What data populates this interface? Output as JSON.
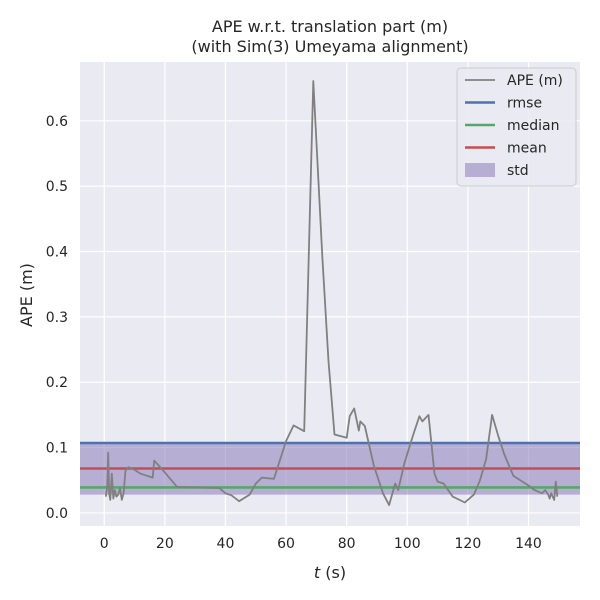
{
  "chart_data": {
    "type": "line",
    "title": "APE w.r.t. translation part (m)",
    "subtitle": "(with Sim(3) Umeyama alignment)",
    "xlabel_var": "t",
    "xlabel_unit": " (s)",
    "ylabel": "APE (m)",
    "xlim": [
      -8,
      157
    ],
    "ylim": [
      -0.02,
      0.69
    ],
    "xticks": [
      "0",
      "20",
      "40",
      "60",
      "80",
      "100",
      "120",
      "140"
    ],
    "yticks": [
      "0.0",
      "0.1",
      "0.2",
      "0.3",
      "0.4",
      "0.5",
      "0.6"
    ],
    "xtick_values": [
      0,
      20,
      40,
      60,
      80,
      100,
      120,
      140
    ],
    "ytick_values": [
      0.0,
      0.1,
      0.2,
      0.3,
      0.4,
      0.5,
      0.6
    ],
    "grid": true,
    "legend_position": "top-right",
    "series": [
      {
        "name": "APE (m)",
        "color": "#808080",
        "x": [
          0.5,
          1.0,
          1.3,
          1.6,
          2.0,
          2.5,
          3.0,
          3.5,
          4.0,
          4.6,
          5.2,
          5.8,
          6.4,
          7.0,
          8.0,
          10.0,
          12.0,
          14.0,
          16.0,
          16.5,
          20.0,
          24.0,
          38.0,
          40.0,
          42.0,
          44.5,
          48.0,
          50.0,
          52.0,
          56.0,
          60.0,
          62.5,
          66.0,
          69.0,
          72.0,
          74.0,
          76.0,
          80.0,
          81.0,
          82.5,
          84.0,
          84.5,
          86.0,
          89.0,
          92.0,
          94.0,
          96.0,
          97.0,
          99.0,
          102.0,
          104.0,
          105.0,
          107.0,
          109.0,
          110.0,
          112.0,
          115.0,
          119.0,
          122.0,
          124.0,
          126.0,
          128.0,
          130.0,
          132.0,
          135.0,
          138.0,
          140.0,
          142.0,
          144.5,
          145.5,
          146.5,
          147.0,
          147.5,
          148.0,
          148.5,
          149.0,
          149.5
        ],
        "y": [
          0.025,
          0.04,
          0.092,
          0.03,
          0.02,
          0.06,
          0.022,
          0.035,
          0.025,
          0.028,
          0.038,
          0.02,
          0.03,
          0.065,
          0.07,
          0.066,
          0.06,
          0.057,
          0.054,
          0.08,
          0.062,
          0.04,
          0.038,
          0.03,
          0.027,
          0.018,
          0.028,
          0.045,
          0.054,
          0.052,
          0.11,
          0.134,
          0.125,
          0.661,
          0.39,
          0.232,
          0.12,
          0.115,
          0.148,
          0.16,
          0.126,
          0.14,
          0.133,
          0.072,
          0.03,
          0.012,
          0.045,
          0.035,
          0.075,
          0.12,
          0.148,
          0.14,
          0.15,
          0.06,
          0.048,
          0.045,
          0.025,
          0.016,
          0.028,
          0.05,
          0.082,
          0.15,
          0.118,
          0.09,
          0.057,
          0.048,
          0.042,
          0.035,
          0.03,
          0.035,
          0.028,
          0.022,
          0.03,
          0.025,
          0.02,
          0.048,
          0.025
        ]
      },
      {
        "name": "rmse",
        "color": "#4c72b0",
        "value": 0.107
      },
      {
        "name": "median",
        "color": "#55a868",
        "value": 0.039
      },
      {
        "name": "mean",
        "color": "#c44e52",
        "value": 0.068
      },
      {
        "name": "std",
        "color": "#8172b3",
        "range": [
          0.028,
          0.108
        ]
      }
    ]
  }
}
